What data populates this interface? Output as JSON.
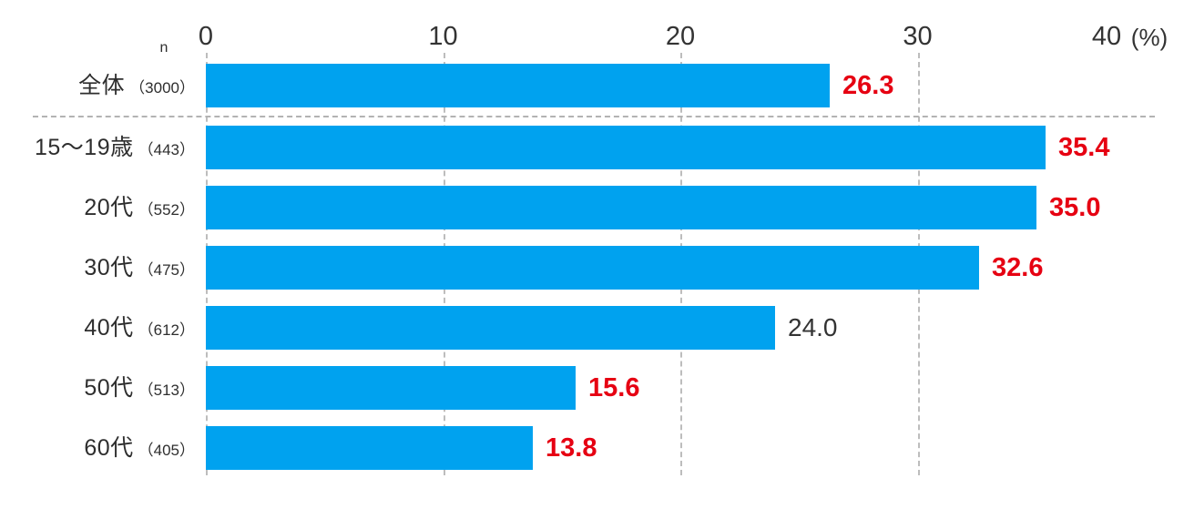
{
  "chart_data": {
    "type": "bar",
    "orientation": "horizontal",
    "title": "",
    "xlabel": "",
    "ylabel": "",
    "unit_label": "(%)",
    "n_column_header": "n",
    "xlim": [
      0,
      40
    ],
    "x_ticks": [
      0,
      10,
      20,
      30,
      40
    ],
    "grid": "vertical-dashed",
    "legend": "none",
    "bar_color": "#00A2EF",
    "value_color_emphasis": "#E60012",
    "value_color_normal": "#333333",
    "gridline_color": "#BDBDBD",
    "categories": [
      {
        "label": "全体",
        "n_label": "（3000）",
        "value": 26.3,
        "value_display": "26.3",
        "emphasis": true
      },
      {
        "label": "15～19歳",
        "n_label": "（443）",
        "value": 35.4,
        "value_display": "35.4",
        "emphasis": true
      },
      {
        "label": "20代",
        "n_label": "（552）",
        "value": 35.0,
        "value_display": "35.0",
        "emphasis": true
      },
      {
        "label": "30代",
        "n_label": "（475）",
        "value": 32.6,
        "value_display": "32.6",
        "emphasis": true
      },
      {
        "label": "40代",
        "n_label": "（612）",
        "value": 24.0,
        "value_display": "24.0",
        "emphasis": false
      },
      {
        "label": "50代",
        "n_label": "（513）",
        "value": 15.6,
        "value_display": "15.6",
        "emphasis": true
      },
      {
        "label": "60代",
        "n_label": "（405）",
        "value": 13.8,
        "value_display": "13.8",
        "emphasis": true
      }
    ],
    "separator_after_first_row": true
  }
}
